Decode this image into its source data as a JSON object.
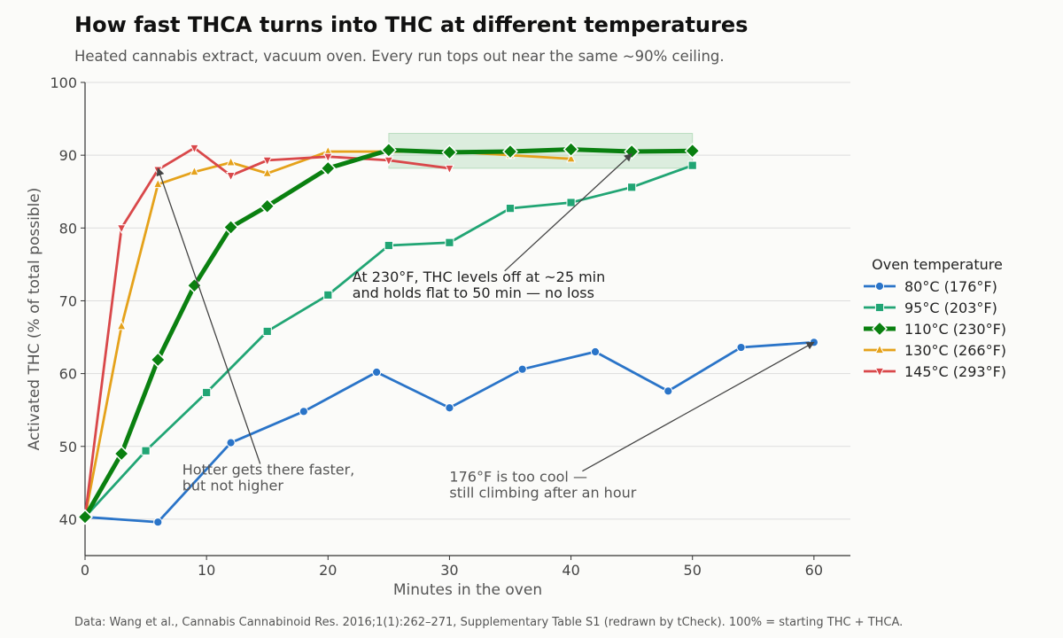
{
  "chart_data": {
    "type": "line",
    "title": "How fast THCA turns into THC at different temperatures",
    "subtitle": "Heated cannabis extract, vacuum oven. Every run tops out near the same ~90% ceiling.",
    "xlabel": "Minutes in the oven",
    "ylabel": "Activated THC (% of total possible)",
    "xlim": [
      0,
      63
    ],
    "ylim": [
      35,
      100
    ],
    "x_ticks": [
      "0",
      "10",
      "20",
      "30",
      "40",
      "50",
      "60"
    ],
    "y_ticks": [
      "40",
      "50",
      "60",
      "70",
      "80",
      "90",
      "100"
    ],
    "grid": "horizontal",
    "legend_title": "Oven temperature",
    "legend_position": "right",
    "series": [
      {
        "name": "80°C (176°F)",
        "color": "#2a74c8",
        "marker": "circle",
        "x": [
          0,
          6,
          12,
          18,
          24,
          30,
          36,
          42,
          48,
          54,
          60
        ],
        "y": [
          40.3,
          39.6,
          50.5,
          54.8,
          60.2,
          55.3,
          60.6,
          63.0,
          57.6,
          63.6,
          64.3
        ]
      },
      {
        "name": "95°C (203°F)",
        "color": "#21a574",
        "marker": "square",
        "x": [
          0,
          5,
          10,
          15,
          20,
          25,
          30,
          35,
          40,
          45,
          50
        ],
        "y": [
          40.3,
          49.4,
          57.4,
          65.8,
          70.8,
          77.6,
          78.0,
          82.7,
          83.5,
          85.6,
          88.6
        ]
      },
      {
        "name": "110°C (230°F)",
        "color": "#0a8010",
        "marker": "diamond",
        "emphasis": true,
        "x": [
          0,
          3,
          6,
          9,
          12,
          15,
          20,
          25,
          30,
          35,
          40,
          45,
          50
        ],
        "y": [
          40.3,
          49.0,
          61.9,
          72.1,
          80.1,
          83.0,
          88.2,
          90.7,
          90.4,
          90.5,
          90.8,
          90.5,
          90.6
        ]
      },
      {
        "name": "130°C (266°F)",
        "color": "#e5a21b",
        "marker": "triangle-up",
        "x": [
          0,
          3,
          6,
          9,
          12,
          15,
          20,
          25,
          30,
          35,
          40
        ],
        "y": [
          40.3,
          66.5,
          86.0,
          87.7,
          89.0,
          87.5,
          90.5,
          90.5,
          90.5,
          90.0,
          89.5
        ]
      },
      {
        "name": "145°C (293°F)",
        "color": "#d9484a",
        "marker": "triangle-down",
        "x": [
          0,
          3,
          6,
          9,
          12,
          15,
          20,
          25,
          30
        ],
        "y": [
          40.3,
          80.0,
          88.0,
          91.0,
          87.2,
          89.3,
          89.8,
          89.3,
          88.2
        ]
      }
    ],
    "highlight_region": {
      "x": [
        25,
        50
      ],
      "y": [
        88.2,
        93.0
      ],
      "color": "#2e9e45"
    },
    "annotations": [
      {
        "text": [
          "At 230°F, THC levels off at ~25 min",
          "and holds flat to 50 min — no loss"
        ],
        "text_xy": [
          22,
          73
        ],
        "arrow_to": [
          45,
          90.2
        ],
        "dark": true
      },
      {
        "text": [
          "Hotter gets there faster,",
          "but not higher"
        ],
        "text_xy": [
          8,
          46.5
        ],
        "arrow_to": [
          6,
          88.2
        ],
        "dark": false
      },
      {
        "text": [
          "176°F is too cool —",
          "still climbing after an hour"
        ],
        "text_xy": [
          30,
          45.5
        ],
        "arrow_to": [
          60,
          64.3
        ],
        "dark": false
      }
    ]
  },
  "footer": "Data: Wang et al., Cannabis Cannabinoid Res. 2016;1(1):262–271, Supplementary Table S1 (redrawn by tCheck). 100% = starting THC + THCA."
}
